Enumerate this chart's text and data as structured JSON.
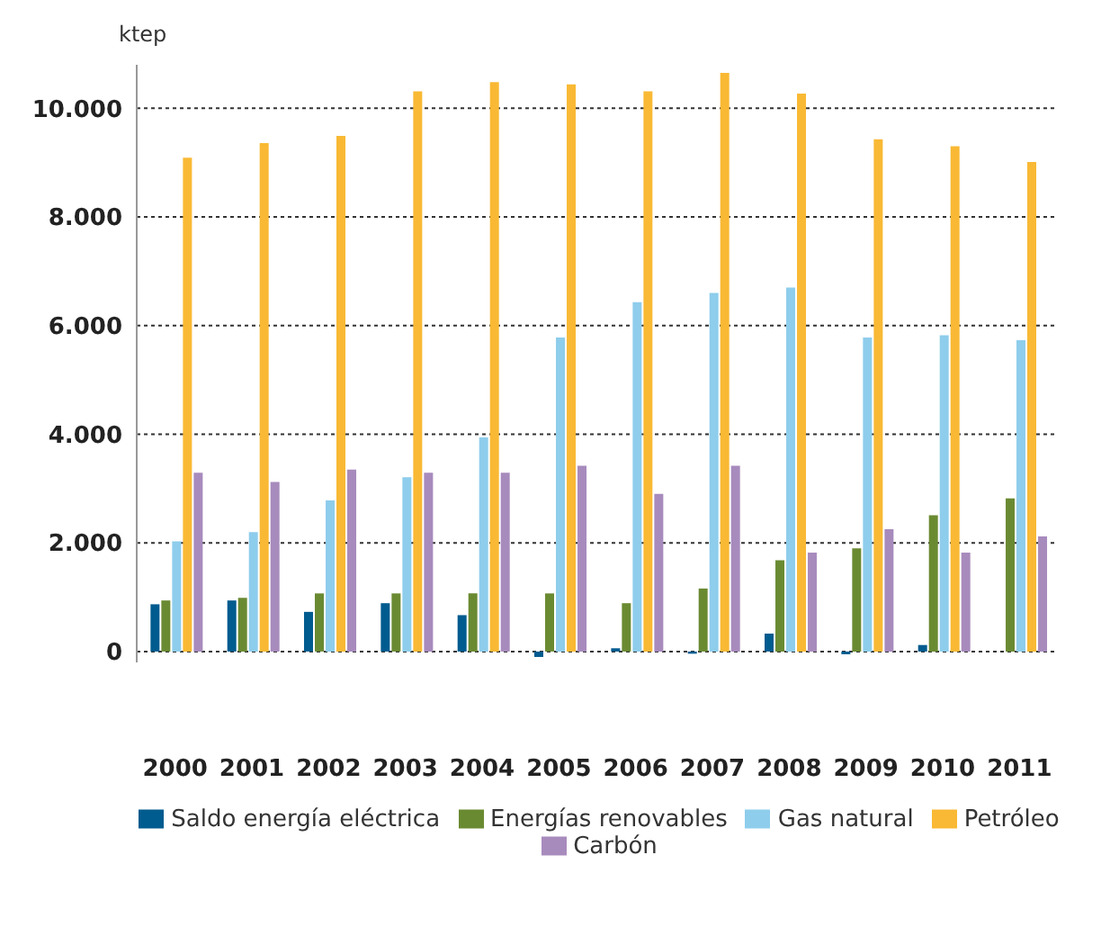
{
  "chart_data": {
    "type": "bar",
    "ylabel": "ktep",
    "categories": [
      "2000",
      "2001",
      "2002",
      "2003",
      "2004",
      "2005",
      "2006",
      "2007",
      "2008",
      "2009",
      "2010",
      "2011"
    ],
    "series": [
      {
        "name": "Saldo energía eléctrica",
        "color": "#005b8f",
        "values": [
          870,
          940,
          730,
          890,
          670,
          -100,
          60,
          -40,
          330,
          -50,
          120,
          null
        ]
      },
      {
        "name": "Energías renovables",
        "color": "#6a8a32",
        "values": [
          940,
          990,
          1070,
          1070,
          1070,
          1070,
          890,
          1160,
          1680,
          1900,
          2510,
          2820
        ]
      },
      {
        "name": "Gas natural",
        "color": "#8ecdec",
        "values": [
          2030,
          2200,
          2780,
          3210,
          3940,
          5780,
          6430,
          6600,
          6700,
          5780,
          5820,
          5730
        ]
      },
      {
        "name": "Petróleo",
        "color": "#f9b934",
        "values": [
          9090,
          9360,
          9490,
          10310,
          10480,
          10440,
          10310,
          10650,
          10270,
          9430,
          9300,
          9010
        ]
      },
      {
        "name": "Carbón",
        "color": "#a88bbd",
        "values": [
          3290,
          3120,
          3350,
          3290,
          3290,
          3420,
          2900,
          3420,
          1820,
          2250,
          1820,
          2120
        ]
      }
    ],
    "ylim": [
      -200,
      10800
    ],
    "yticks": [
      {
        "value": 0,
        "label": "0"
      },
      {
        "value": 2000,
        "label": "2.000"
      },
      {
        "value": 4000,
        "label": "4.000"
      },
      {
        "value": 6000,
        "label": "6.000"
      },
      {
        "value": 8000,
        "label": "8.000"
      },
      {
        "value": 10000,
        "label": "10.000"
      }
    ],
    "grid": "y",
    "legend": "bottom"
  }
}
